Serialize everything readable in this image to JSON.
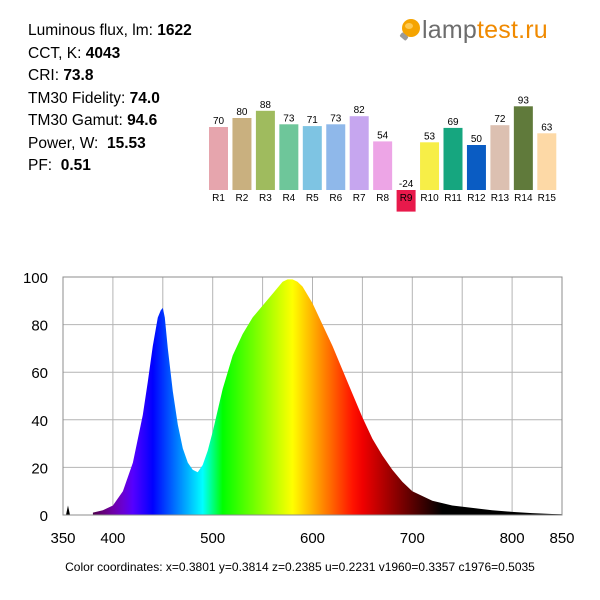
{
  "params": [
    {
      "label": "Luminous flux, lm:",
      "value": "1622"
    },
    {
      "label": "CCT, K:",
      "value": "4043"
    },
    {
      "label": "CRI:",
      "value": "73.8"
    },
    {
      "label": "TM30 Fidelity:",
      "value": "74.0"
    },
    {
      "label": "TM30 Gamut:",
      "value": "94.6"
    },
    {
      "label": "Power, W:",
      "value": "15.53"
    },
    {
      "label": "PF:",
      "value": "0.51"
    }
  ],
  "logo": {
    "part1": "lamp",
    "part2": "test.ru",
    "icon": "bulb-icon",
    "color_gray": "#6d6d6d",
    "color_orange": "#f08a00"
  },
  "chart_data": [
    {
      "type": "bar",
      "categories": [
        "R1",
        "R2",
        "R3",
        "R4",
        "R5",
        "R6",
        "R7",
        "R8",
        "R9",
        "R10",
        "R11",
        "R12",
        "R13",
        "R14",
        "R15"
      ],
      "values": [
        70,
        80,
        88,
        73,
        71,
        73,
        82,
        54,
        -24,
        53,
        69,
        50,
        72,
        93,
        63
      ],
      "colors": [
        "#e6a5ad",
        "#c9b07f",
        "#9fbb5e",
        "#6ec69a",
        "#7ec4e3",
        "#8fb8ea",
        "#c6a6ef",
        "#eda5e6",
        "#e8194b",
        "#f7ee47",
        "#16a67f",
        "#0a5cc3",
        "#dcc0b1",
        "#607a3b",
        "#fdd9a6"
      ]
    },
    {
      "type": "area",
      "title": "",
      "xlabel": "",
      "ylabel": "",
      "xlim": [
        350,
        850
      ],
      "ylim": [
        0,
        100
      ],
      "xticks": [
        350,
        400,
        500,
        600,
        700,
        800,
        850
      ],
      "yticks": [
        0,
        20,
        40,
        60,
        80,
        100
      ],
      "grid": true,
      "x": [
        380,
        390,
        400,
        410,
        420,
        430,
        435,
        440,
        445,
        448,
        450,
        452,
        455,
        460,
        465,
        470,
        475,
        480,
        485,
        490,
        495,
        500,
        505,
        510,
        520,
        530,
        540,
        550,
        560,
        570,
        575,
        580,
        585,
        590,
        600,
        610,
        620,
        630,
        640,
        650,
        660,
        670,
        680,
        690,
        700,
        710,
        720,
        740,
        760,
        780,
        800,
        820,
        840,
        850
      ],
      "y": [
        1,
        2,
        4,
        10,
        22,
        42,
        56,
        71,
        83,
        86,
        87,
        83,
        70,
        52,
        38,
        28,
        22,
        19,
        18,
        21,
        27,
        35,
        44,
        53,
        67,
        76,
        83,
        88,
        93,
        98,
        99,
        99,
        98,
        96,
        89,
        80,
        71,
        61,
        51,
        41,
        32,
        25,
        19,
        14,
        10,
        8,
        6,
        4,
        3,
        2,
        1.3,
        0.8,
        0.4,
        0.3
      ],
      "blip": {
        "x": 355,
        "y": 4
      }
    }
  ],
  "footer": "Color coordinates: x=0.3801 y=0.3814 z=0.2385 u=0.2231 v1960=0.3357 c1976=0.5035"
}
